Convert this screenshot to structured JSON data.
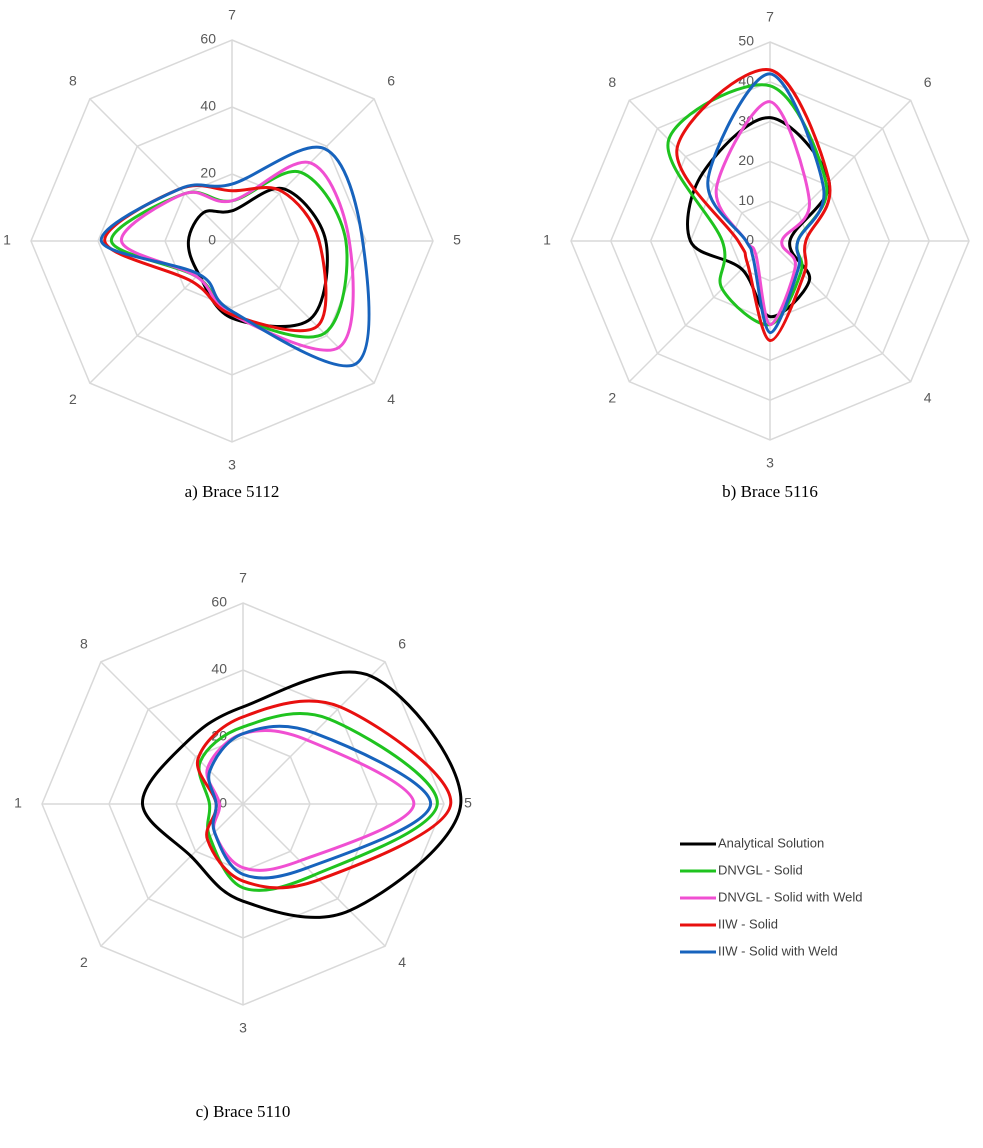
{
  "chart_data": [
    {
      "type": "radar",
      "caption": "a) Brace 5112",
      "categories": [
        "7",
        "6",
        "5",
        "4",
        "3",
        "2",
        "1",
        "8"
      ],
      "ylim": [
        0,
        60
      ],
      "yticks": [
        0,
        20,
        40,
        60
      ],
      "grid": true,
      "series": [
        {
          "name": "Analytical Solution",
          "color": "#000000",
          "values": [
            9,
            22,
            28,
            33,
            23,
            14,
            13,
            12
          ]
        },
        {
          "name": "DNVGL - Solid",
          "color": "#1fc31f",
          "values": [
            12,
            29,
            34,
            39,
            22,
            15,
            36,
            20
          ]
        },
        {
          "name": "DNVGL - Solid with Weld",
          "color": "#f04fd2",
          "values": [
            12,
            33,
            35,
            45,
            22,
            15,
            33,
            20
          ]
        },
        {
          "name": "IIW - Solid",
          "color": "#e8100f",
          "values": [
            15,
            21,
            26,
            36,
            22,
            17,
            38,
            22
          ]
        },
        {
          "name": "IIW - Solid with Weld",
          "color": "#1763bd",
          "values": [
            17,
            39,
            39,
            52,
            21,
            14,
            39,
            22
          ]
        }
      ]
    },
    {
      "type": "radar",
      "caption": "b) Brace 5116",
      "categories": [
        "7",
        "6",
        "5",
        "4",
        "3",
        "2",
        "1",
        "8"
      ],
      "ylim": [
        0,
        50
      ],
      "yticks": [
        0,
        10,
        20,
        30,
        40,
        50
      ],
      "grid": true,
      "series": [
        {
          "name": "Analytical Solution",
          "color": "#000000",
          "values": [
            31,
            21,
            5,
            14,
            19,
            10,
            20,
            24
          ]
        },
        {
          "name": "DNVGL - Solid",
          "color": "#1fc31f",
          "values": [
            39,
            20,
            7,
            11,
            21,
            17,
            12,
            36
          ]
        },
        {
          "name": "DNVGL - Solid with Weld",
          "color": "#f04fd2",
          "values": [
            35,
            14,
            3,
            9,
            21,
            5,
            6,
            19
          ]
        },
        {
          "name": "IIW - Solid",
          "color": "#e8100f",
          "values": [
            43,
            21,
            9,
            12,
            25,
            8,
            8,
            33
          ]
        },
        {
          "name": "IIW - Solid with Weld",
          "color": "#1763bd",
          "values": [
            42,
            19,
            7,
            10,
            23,
            6,
            6,
            22
          ]
        }
      ]
    },
    {
      "type": "radar",
      "caption": "c) Brace 5110",
      "categories": [
        "7",
        "6",
        "5",
        "4",
        "3",
        "2",
        "1",
        "8"
      ],
      "ylim": [
        0,
        60
      ],
      "yticks": [
        0,
        20,
        40,
        60
      ],
      "grid": true,
      "legend": "right",
      "series": [
        {
          "name": "Analytical Solution",
          "color": "#000000",
          "values": [
            29,
            54,
            65,
            45,
            29,
            22,
            30,
            25
          ]
        },
        {
          "name": "DNVGL - Solid",
          "color": "#1fc31f",
          "values": [
            23,
            36,
            58,
            30,
            25,
            14,
            10,
            18
          ]
        },
        {
          "name": "DNVGL - Solid with Weld",
          "color": "#f04fd2",
          "values": [
            21,
            27,
            51,
            24,
            19,
            12,
            7,
            15
          ]
        },
        {
          "name": "IIW - Solid",
          "color": "#e8100f",
          "values": [
            26,
            41,
            62,
            32,
            23,
            15,
            8,
            19
          ]
        },
        {
          "name": "IIW - Solid with Weld",
          "color": "#1763bd",
          "values": [
            21,
            30,
            56,
            27,
            21,
            12,
            8,
            14
          ]
        }
      ]
    }
  ]
}
